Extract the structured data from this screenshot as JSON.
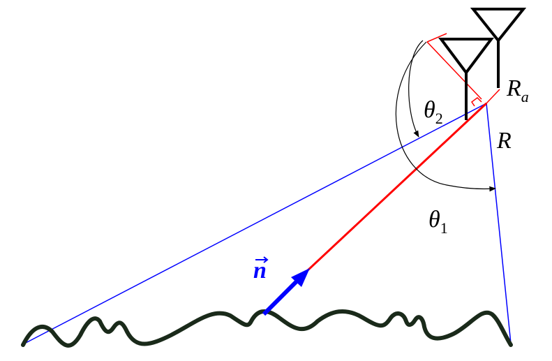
{
  "labels": {
    "theta_2": {
      "base": "θ",
      "sub": "2"
    },
    "r_a": {
      "base": "R",
      "sub": "a"
    },
    "r": "R",
    "theta_1": {
      "base": "θ",
      "sub": "1"
    },
    "normal": "n"
  }
}
